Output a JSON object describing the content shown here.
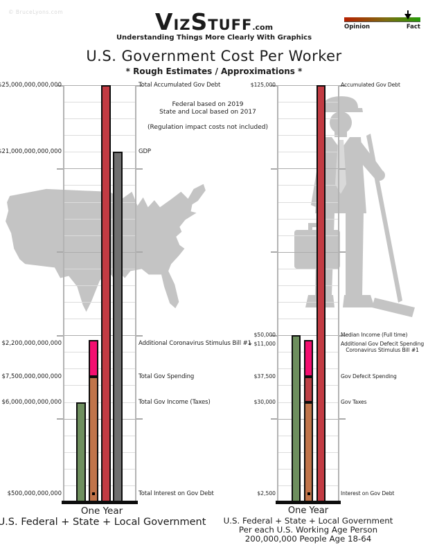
{
  "watermark": "© BruceLyons.com",
  "header": {
    "logo": {
      "part1": "V",
      "part2": "IZ",
      "part3": "S",
      "part4": "TUFF",
      "suffix": ".com"
    },
    "tagline": "Understanding Things More Clearly With Graphics",
    "gauge": {
      "left_label": "Opinion",
      "right_label": "Fact",
      "marker_pct": 83
    }
  },
  "title": "U.S. Government Cost Per Worker",
  "subtitle": "* Rough Estimates / Approximations *",
  "notes": {
    "line1": "Federal based on 2019",
    "line2": "State and Local based on 2017",
    "line3": "(Regulation impact costs not included)"
  },
  "colors": {
    "debt_red": "#c23b43",
    "gdp_gray": "#6f6f6f",
    "income_green": "#6e8f5e",
    "spending_tan": "#c1744a",
    "deficit_red": "#be4046",
    "stimulus_pink": "#f40f70",
    "outline_black": "#0c0c0c",
    "silhouette_gray": "#c4c4c4"
  },
  "chart_data": [
    {
      "type": "bar",
      "panel": "us-government-totals",
      "ylim": [
        0,
        25000000000000
      ],
      "grid_step": 1000000000000,
      "major_every": 5,
      "legend_position": "none",
      "grid": true,
      "bars": [
        {
          "name": "total-gov-income",
          "segments": [
            {
              "value": 6000000000000,
              "color": "#6e8f5e"
            }
          ]
        },
        {
          "name": "total-gov-spending",
          "marker_value": 500000000000,
          "segments": [
            {
              "value": 7500000000000,
              "color": "#c1744a"
            },
            {
              "value": 2200000000000,
              "color": "#f40f70"
            }
          ]
        },
        {
          "name": "total-accumulated-gov-debt",
          "segments": [
            {
              "value": 25000000000000,
              "color": "#c23b43"
            }
          ]
        },
        {
          "name": "gdp",
          "segments": [
            {
              "value": 21000000000000,
              "color": "#6f6f6f"
            }
          ]
        }
      ],
      "annotations": [
        {
          "value": 25000000000000,
          "dy": 0,
          "left": "$25,000,000,000,000",
          "right": [
            "Total Accumulated Gov Debt"
          ]
        },
        {
          "value": 21000000000000,
          "dy": 0,
          "left": "$21,000,000,000,000",
          "right": [
            "GDP"
          ]
        },
        {
          "value": 9700000000000,
          "dy": 5,
          "left": "+ $2,200,000,000,000",
          "right": [
            "Additional Coronavirus Stimulus Bill #1"
          ]
        },
        {
          "value": 7500000000000,
          "dy": 0,
          "left": "$7,500,000,000,000",
          "right": [
            "Total Gov Spending"
          ]
        },
        {
          "value": 6000000000000,
          "dy": 0,
          "left": "$6,000,000,000,000",
          "right": [
            "Total Gov Income (Taxes)"
          ]
        },
        {
          "value": 500000000000,
          "dy": 0,
          "left": "$500,000,000,000",
          "right": [
            "Total Interest on Gov Debt"
          ]
        }
      ],
      "caption_lines": [
        "One Year",
        "U.S. Federal + State + Local Government"
      ]
    },
    {
      "type": "bar",
      "panel": "per-worker",
      "ylim": [
        0,
        125000
      ],
      "grid_step": 5000,
      "major_every": 5,
      "legend_position": "none",
      "grid": true,
      "bars": [
        {
          "name": "median-income",
          "segments": [
            {
              "value": 50000,
              "color": "#6e8f5e"
            }
          ]
        },
        {
          "name": "gov-spending-stack",
          "marker_value": 2500,
          "segments": [
            {
              "value": 30000,
              "color": "#c1744a"
            },
            {
              "value": 7500,
              "color": "#be4046"
            },
            {
              "value": 11000,
              "color": "#f40f70"
            }
          ]
        },
        {
          "name": "accumulated-gov-debt",
          "segments": [
            {
              "value": 125000,
              "color": "#c23b43"
            }
          ]
        }
      ],
      "annotations": [
        {
          "value": 125000,
          "dy": 0,
          "left": "$125,000",
          "right": [
            "Accumulated Gov Debt"
          ]
        },
        {
          "value": 50000,
          "dy": 0,
          "left": "$50,000",
          "right": [
            "Median Income (Full time)"
          ]
        },
        {
          "value": 48500,
          "dy": 6,
          "left": "+ $11,000",
          "right": [
            "Additional Gov Defecit Spending",
            "Coronavirus Stimulus Bill #1"
          ]
        },
        {
          "value": 37500,
          "dy": 0,
          "left": "$37,500",
          "right": [
            "Gov Defecit Spending"
          ]
        },
        {
          "value": 30000,
          "dy": 0,
          "left": "$30,000",
          "right": [
            "Gov Taxes"
          ]
        },
        {
          "value": 2500,
          "dy": 0,
          "left": "$2,500",
          "right": [
            "Interest on Gov Debt"
          ]
        }
      ],
      "caption_lines": [
        "One Year",
        "U.S. Federal + State + Local Government",
        "Per each U.S. Working Age Person",
        "200,000,000 People Age 18-64"
      ]
    }
  ]
}
